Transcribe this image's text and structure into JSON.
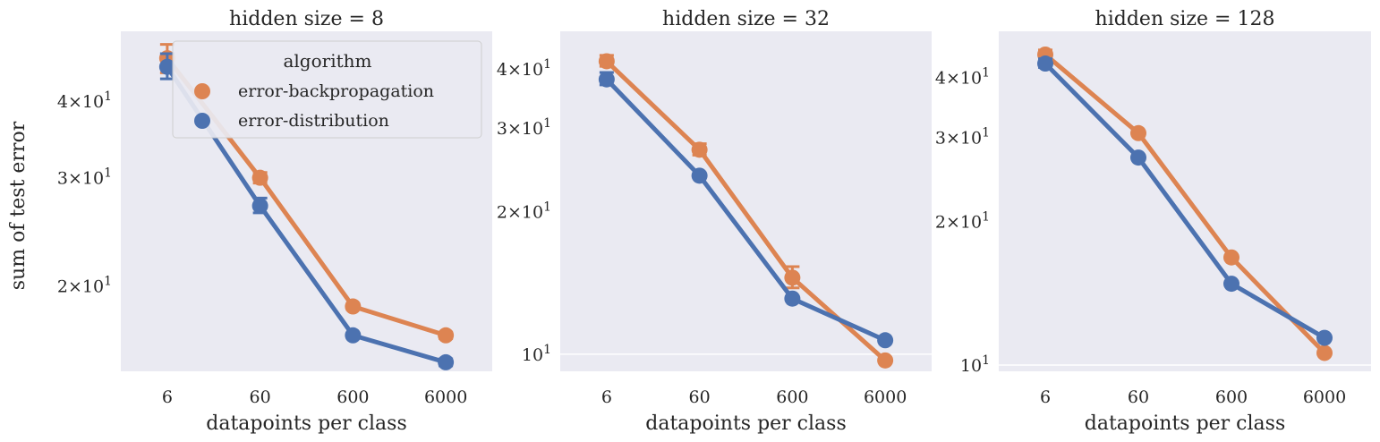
{
  "colors": {
    "backprop": "#dd8452",
    "distribution": "#4c72b0",
    "panel_bg": "#eaeaf2",
    "grid": "#ffffff"
  },
  "legend": {
    "title": "algorithm",
    "entries": [
      "error-backpropagation",
      "error-distribution"
    ]
  },
  "shared": {
    "ylabel": "sum of test error",
    "xlabel": "datapoints per class"
  },
  "chart_data": [
    {
      "type": "line",
      "title": "hidden size = 8",
      "xlabel": "datapoints per class",
      "ylabel": "sum of test error",
      "yscale": "log",
      "categories": [
        "6",
        "60",
        "600",
        "6000"
      ],
      "ylim": [
        14.5,
        52
      ],
      "yticks": [
        {
          "value": 20,
          "label": "2×10^1"
        },
        {
          "value": 30,
          "label": "3×10^1"
        },
        {
          "value": 40,
          "label": "4×10^1"
        }
      ],
      "legend": "top-right",
      "series": [
        {
          "name": "error-backpropagation",
          "values": [
            47.0,
            30.0,
            18.5,
            16.6
          ],
          "err": [
            [
              44.5,
              49.5
            ],
            [
              29.4,
              30.6
            ],
            [
              18.3,
              18.7
            ],
            [
              16.4,
              16.8
            ]
          ]
        },
        {
          "name": "error-distribution",
          "values": [
            45.5,
            27.0,
            16.6,
            15.0
          ],
          "err": [
            [
              43.5,
              47.8
            ],
            [
              26.3,
              27.8
            ],
            [
              16.5,
              16.7
            ],
            [
              14.8,
              15.2
            ]
          ]
        }
      ]
    },
    {
      "type": "line",
      "title": "hidden size = 32",
      "xlabel": "datapoints per class",
      "ylabel": "",
      "yscale": "log",
      "categories": [
        "6",
        "60",
        "600",
        "6000"
      ],
      "ylim": [
        9.2,
        48
      ],
      "yticks": [
        {
          "value": 10,
          "label": "10^1"
        },
        {
          "value": 20,
          "label": "2×10^1"
        },
        {
          "value": 30,
          "label": "3×10^1"
        },
        {
          "value": 40,
          "label": "4×10^1"
        }
      ],
      "legend": "none",
      "series": [
        {
          "name": "error-backpropagation",
          "values": [
            41.5,
            27.0,
            14.5,
            9.7
          ],
          "err": [
            [
              40.5,
              42.7
            ],
            [
              26.3,
              27.8
            ],
            [
              13.8,
              15.3
            ],
            [
              9.6,
              9.8
            ]
          ]
        },
        {
          "name": "error-distribution",
          "values": [
            38.0,
            23.8,
            13.1,
            10.7
          ],
          "err": [
            [
              37.0,
              39.3
            ],
            [
              23.6,
              24.0
            ],
            [
              13.0,
              13.2
            ],
            [
              10.6,
              10.8
            ]
          ]
        }
      ]
    },
    {
      "type": "line",
      "title": "hidden size = 128",
      "xlabel": "datapoints per class",
      "ylabel": "",
      "yscale": "log",
      "categories": [
        "6",
        "60",
        "600",
        "6000"
      ],
      "ylim": [
        9.7,
        50
      ],
      "yticks": [
        {
          "value": 10,
          "label": "10^1"
        },
        {
          "value": 20,
          "label": "2×10^1"
        },
        {
          "value": 30,
          "label": "3×10^1"
        },
        {
          "value": 40,
          "label": "4×10^1"
        }
      ],
      "legend": "none",
      "series": [
        {
          "name": "error-backpropagation",
          "values": [
            44.7,
            30.6,
            16.8,
            10.6
          ],
          "err": [
            [
              44.0,
              45.7
            ],
            [
              30.3,
              30.9
            ],
            [
              16.6,
              17.0
            ],
            [
              10.5,
              10.7
            ]
          ]
        },
        {
          "name": "error-distribution",
          "values": [
            42.8,
            27.2,
            14.8,
            11.4
          ],
          "err": [
            [
              42.0,
              43.8
            ],
            [
              27.0,
              27.5
            ],
            [
              14.7,
              14.9
            ],
            [
              11.3,
              11.5
            ]
          ]
        }
      ]
    }
  ]
}
